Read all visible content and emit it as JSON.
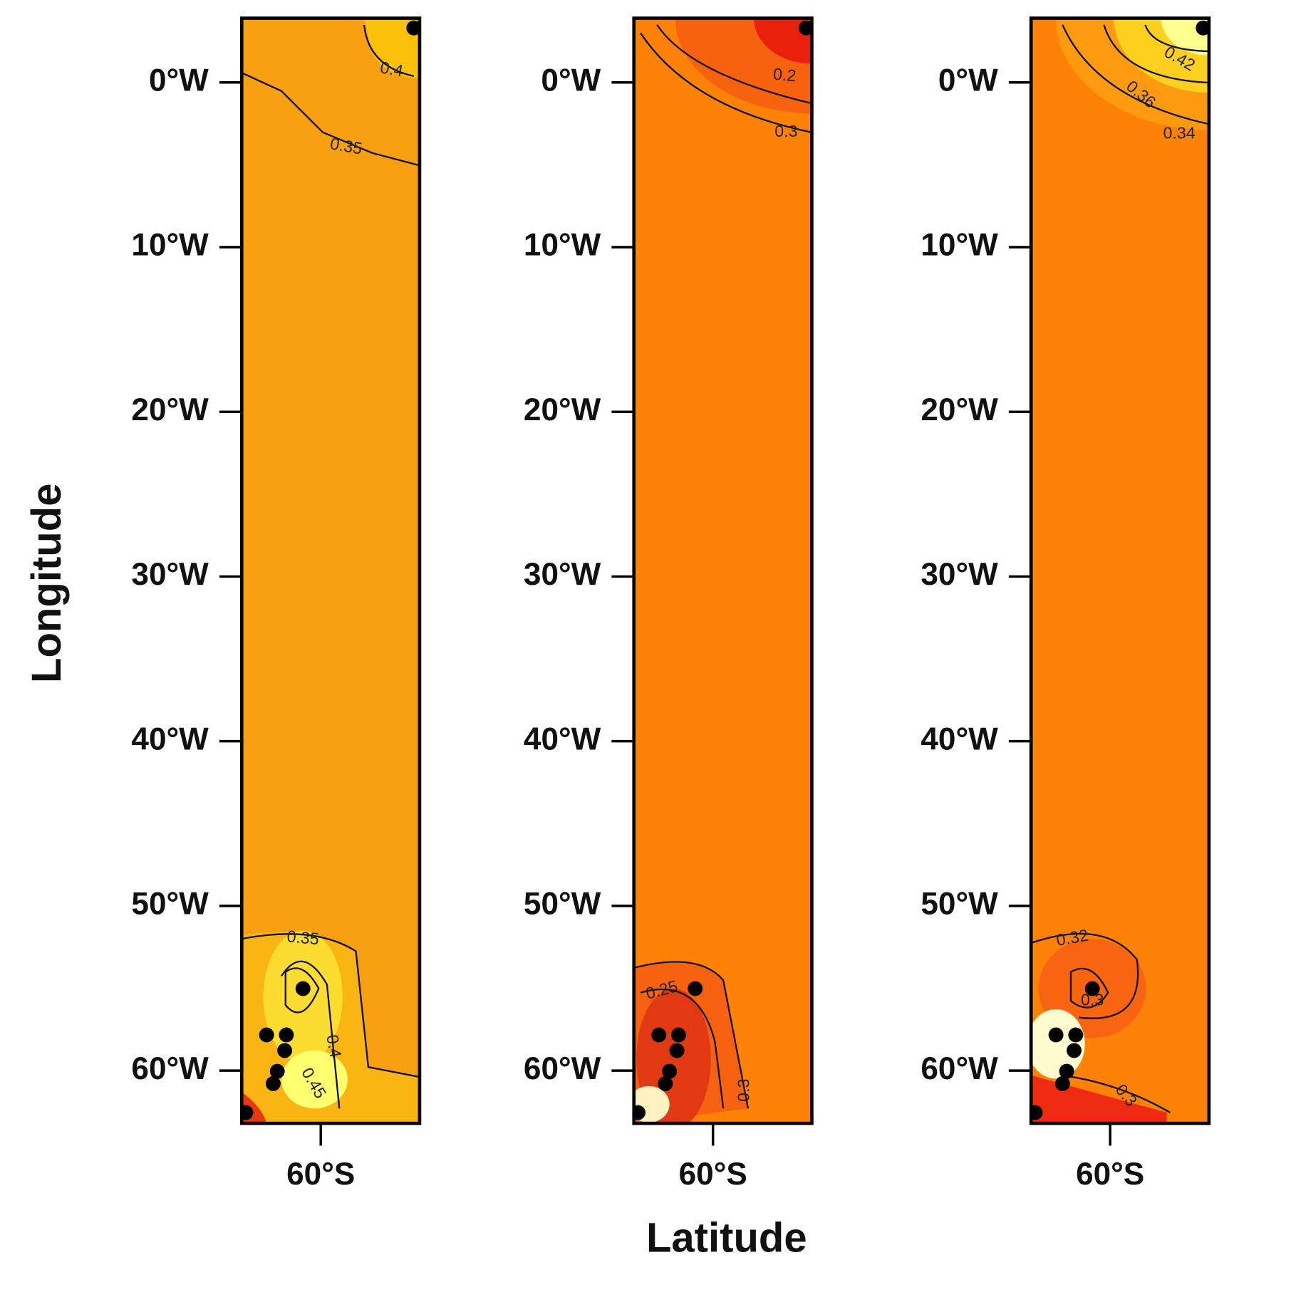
{
  "chart_data": [
    {
      "type": "contour",
      "color": "#f8a012",
      "point_color": "#000000",
      "y_label": "Longitude",
      "ylim": [
        -3.9,
        63.2
      ],
      "yticks": [
        {
          "value": 0,
          "label": "0°W"
        },
        {
          "value": 10,
          "label": "10°W"
        },
        {
          "value": 20,
          "label": "20°W"
        },
        {
          "value": 30,
          "label": "30°W"
        },
        {
          "value": 40,
          "label": "40°W"
        },
        {
          "value": 50,
          "label": "50°W"
        },
        {
          "value": 60,
          "label": "60°W"
        }
      ],
      "xlim": [
        64.8,
        54
      ],
      "xticks": [
        {
          "value": 60,
          "label": "60°S"
        }
      ],
      "contour_levels": [
        0.4,
        0.35,
        0.35,
        0.4,
        0.45
      ],
      "x": [
        54.35,
        61.08,
        63.29,
        62.09,
        62.19,
        62.64,
        62.89,
        64.55
      ],
      "y": [
        -3.31,
        55.02,
        57.83,
        57.83,
        58.78,
        60.04,
        60.79,
        62.55
      ]
    },
    {
      "type": "contour",
      "color": "#fd8207",
      "point_color": "#000000",
      "x_label": "Latitude",
      "ylim": [
        -3.9,
        63.2
      ],
      "yticks": [
        {
          "value": 0,
          "label": "0°W"
        },
        {
          "value": 10,
          "label": "10°W"
        },
        {
          "value": 20,
          "label": "20°W"
        },
        {
          "value": 30,
          "label": "30°W"
        },
        {
          "value": 40,
          "label": "40°W"
        },
        {
          "value": 50,
          "label": "50°W"
        },
        {
          "value": 60,
          "label": "60°W"
        }
      ],
      "xlim": [
        64.8,
        54
      ],
      "xticks": [
        {
          "value": 60,
          "label": "60°S"
        }
      ],
      "contour_levels": [
        0.2,
        0.3,
        0.25,
        0.3
      ],
      "x": [
        54.35,
        61.08,
        63.29,
        62.09,
        62.19,
        62.64,
        62.89,
        64.55
      ],
      "y": [
        -3.31,
        55.02,
        57.83,
        57.83,
        58.78,
        60.04,
        60.79,
        62.55
      ]
    },
    {
      "type": "contour",
      "color": "#fd8207",
      "point_color": "#000000",
      "ylim": [
        -3.9,
        63.2
      ],
      "yticks": [
        {
          "value": 0,
          "label": "0°W"
        },
        {
          "value": 10,
          "label": "10°W"
        },
        {
          "value": 20,
          "label": "20°W"
        },
        {
          "value": 30,
          "label": "30°W"
        },
        {
          "value": 40,
          "label": "40°W"
        },
        {
          "value": 50,
          "label": "50°W"
        },
        {
          "value": 60,
          "label": "60°W"
        }
      ],
      "xlim": [
        64.8,
        54
      ],
      "xticks": [
        {
          "value": 60,
          "label": "60°S"
        }
      ],
      "contour_levels": [
        0.42,
        0.36,
        0.34,
        0.32,
        0.3,
        0.3
      ],
      "x": [
        54.35,
        61.08,
        63.29,
        62.09,
        62.19,
        62.64,
        62.89,
        64.55
      ],
      "y": [
        -3.31,
        55.02,
        57.83,
        57.83,
        58.78,
        60.04,
        60.79,
        62.55
      ]
    }
  ]
}
